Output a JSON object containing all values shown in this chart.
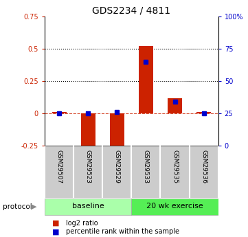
{
  "title": "GDS2234 / 4811",
  "samples": [
    "GSM29507",
    "GSM29523",
    "GSM29529",
    "GSM29533",
    "GSM29535",
    "GSM29536"
  ],
  "log2_ratio": [
    0.01,
    -0.28,
    -0.27,
    0.52,
    0.12,
    0.01
  ],
  "percentile_rank": [
    25,
    25,
    26,
    65,
    34,
    25
  ],
  "bar_color": "#cc2200",
  "dot_color": "#0000cc",
  "ylim_left": [
    -0.25,
    0.75
  ],
  "ylim_right": [
    0,
    100
  ],
  "yticks_left": [
    -0.25,
    0,
    0.25,
    0.5,
    0.75
  ],
  "yticks_right": [
    0,
    25,
    50,
    75,
    100
  ],
  "ytick_labels_left": [
    "-0.25",
    "0",
    "0.25",
    "0.5",
    "0.75"
  ],
  "ytick_labels_right": [
    "0",
    "25",
    "50",
    "75",
    "100%"
  ],
  "hlines": [
    0.25,
    0.5
  ],
  "zero_line_color": "#cc2200",
  "groups": [
    {
      "label": "baseline",
      "start": 0,
      "end": 2,
      "color": "#aaffaa"
    },
    {
      "label": "20 wk exercise",
      "start": 3,
      "end": 5,
      "color": "#55ee55"
    }
  ],
  "protocol_label": "protocol",
  "legend_bar_label": "log2 ratio",
  "legend_dot_label": "percentile rank within the sample",
  "tick_label_color_left": "#cc2200",
  "tick_label_color_right": "#0000cc",
  "sample_bg": "#cccccc",
  "bar_width": 0.5
}
